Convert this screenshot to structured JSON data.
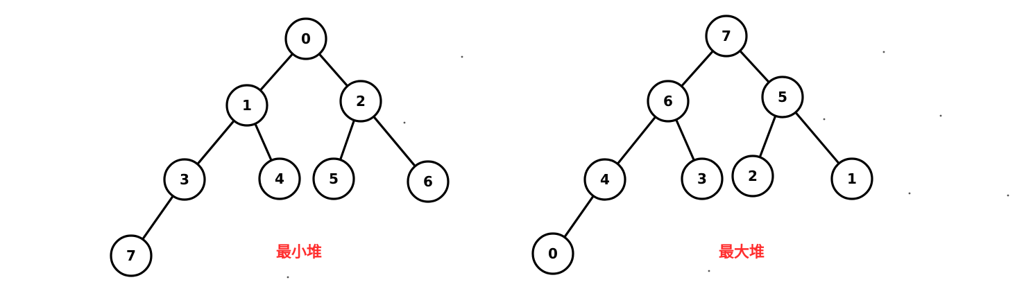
{
  "diagrams": [
    {
      "caption": "最小堆",
      "nodes": [
        {
          "id": "n0",
          "label": "0"
        },
        {
          "id": "n1",
          "label": "1"
        },
        {
          "id": "n2",
          "label": "2"
        },
        {
          "id": "n3",
          "label": "3"
        },
        {
          "id": "n4",
          "label": "4"
        },
        {
          "id": "n5",
          "label": "5"
        },
        {
          "id": "n6",
          "label": "6"
        },
        {
          "id": "n7",
          "label": "7"
        }
      ],
      "edges": [
        [
          "n0",
          "n1"
        ],
        [
          "n0",
          "n2"
        ],
        [
          "n1",
          "n3"
        ],
        [
          "n1",
          "n4"
        ],
        [
          "n2",
          "n5"
        ],
        [
          "n2",
          "n6"
        ],
        [
          "n3",
          "n7"
        ]
      ]
    },
    {
      "caption": "最大堆",
      "nodes": [
        {
          "id": "m7",
          "label": "7"
        },
        {
          "id": "m6",
          "label": "6"
        },
        {
          "id": "m5",
          "label": "5"
        },
        {
          "id": "m4",
          "label": "4"
        },
        {
          "id": "m3",
          "label": "3"
        },
        {
          "id": "m2",
          "label": "2"
        },
        {
          "id": "m1",
          "label": "1"
        },
        {
          "id": "m0",
          "label": "0"
        }
      ],
      "edges": [
        [
          "m7",
          "m6"
        ],
        [
          "m7",
          "m5"
        ],
        [
          "m6",
          "m4"
        ],
        [
          "m6",
          "m3"
        ],
        [
          "m5",
          "m2"
        ],
        [
          "m5",
          "m1"
        ],
        [
          "m4",
          "m0"
        ]
      ]
    }
  ],
  "colors": {
    "caption": "#ff2d2d",
    "stroke": "#000000"
  }
}
